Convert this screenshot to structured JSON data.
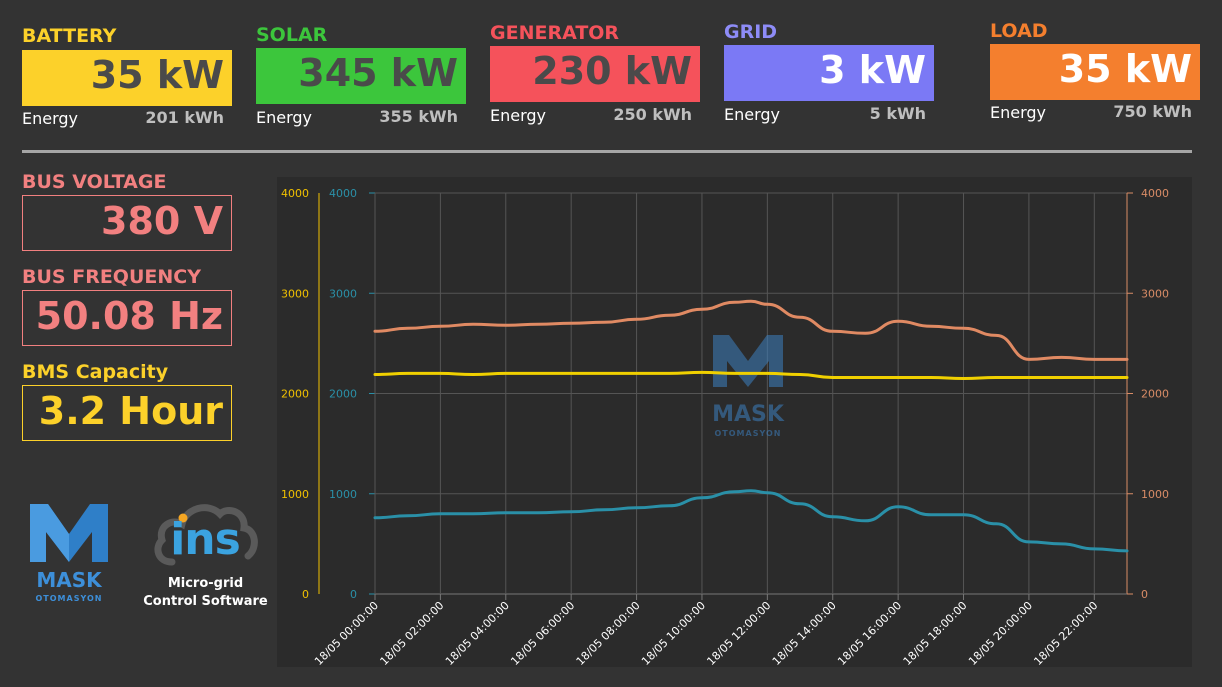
{
  "tiles": [
    {
      "id": "battery",
      "label": "BATTERY",
      "value": "35 kW",
      "energy_label": "Energy",
      "energy_value": "201 kWh",
      "color": "#fcd12a",
      "label_color": "#fcd12a",
      "value_color": "#4a4a4a"
    },
    {
      "id": "solar",
      "label": "SOLAR",
      "value": "345 kW",
      "energy_label": "Energy",
      "energy_value": "355 kWh",
      "color": "#3cc63c",
      "label_color": "#3cc63c",
      "value_color": "#4a4a4a"
    },
    {
      "id": "generator",
      "label": "GENERATOR",
      "value": "230 kW",
      "energy_label": "Energy",
      "energy_value": "250 kWh",
      "color": "#f5525b",
      "label_color": "#f5525b",
      "value_color": "#4a4a4a"
    },
    {
      "id": "grid",
      "label": "GRID",
      "value": "3 kW",
      "energy_label": "Energy",
      "energy_value": "5 kWh",
      "color": "#7b79f5",
      "label_color": "#8e8cf7",
      "value_color": "#ffffff"
    },
    {
      "id": "load",
      "label": "LOAD",
      "value": "35 kW",
      "energy_label": "Energy",
      "energy_value": "750 kWh",
      "color": "#f47f2e",
      "label_color": "#f47f2e",
      "value_color": "#ffffff"
    }
  ],
  "stats": [
    {
      "id": "bus-voltage",
      "label": "BUS VOLTAGE",
      "value": "380 V",
      "color": "#f28080"
    },
    {
      "id": "bus-frequency",
      "label": "BUS FREQUENCY",
      "value": "50.08 Hz",
      "color": "#f28080"
    },
    {
      "id": "bms-capacity",
      "label": "BMS Capacity",
      "value": "3.2 Hour",
      "color": "#fcd12a"
    }
  ],
  "logos": {
    "mask_name": "MASK",
    "mask_sub": "OTOMASYON",
    "ins_name": "ins",
    "ins_caption_1": "Micro-grid",
    "ins_caption_2": "Control Software"
  },
  "chart_data": {
    "type": "line",
    "x": [
      "18/05 00:00:00",
      "18/05 01:00:00",
      "18/05 02:00:00",
      "18/05 03:00:00",
      "18/05 04:00:00",
      "18/05 05:00:00",
      "18/05 06:00:00",
      "18/05 07:00:00",
      "18/05 08:00:00",
      "18/05 09:00:00",
      "18/05 10:00:00",
      "18/05 11:00:00",
      "18/05 11:30:00",
      "18/05 12:00:00",
      "18/05 13:00:00",
      "18/05 14:00:00",
      "18/05 15:00:00",
      "18/05 16:00:00",
      "18/05 17:00:00",
      "18/05 18:00:00",
      "18/05 19:00:00",
      "18/05 20:00:00",
      "18/05 21:00:00",
      "18/05 22:00:00",
      "18/05 23:00:00"
    ],
    "x_ticks": [
      "18/05 00:00:00",
      "18/05 02:00:00",
      "18/05 04:00:00",
      "18/05 06:00:00",
      "18/05 08:00:00",
      "18/05 10:00:00",
      "18/05 12:00:00",
      "18/05 14:00:00",
      "18/05 16:00:00",
      "18/05 18:00:00",
      "18/05 20:00:00",
      "18/05 22:00:00"
    ],
    "series": [
      {
        "values": [
          2620,
          2650,
          2670,
          2690,
          2680,
          2690,
          2700,
          2710,
          2740,
          2780,
          2840,
          2910,
          2920,
          2890,
          2760,
          2620,
          2600,
          2720,
          2670,
          2650,
          2580,
          2340,
          2360,
          2340,
          2340
        ],
        "color": "#e08a63",
        "axis": "right"
      },
      {
        "values": [
          2190,
          2200,
          2200,
          2190,
          2200,
          2200,
          2200,
          2200,
          2200,
          2200,
          2210,
          2200,
          2200,
          2200,
          2190,
          2160,
          2160,
          2160,
          2160,
          2150,
          2160,
          2160,
          2160,
          2160,
          2160
        ],
        "color": "#f0d000",
        "axis": "left"
      },
      {
        "values": [
          760,
          780,
          800,
          800,
          810,
          810,
          820,
          840,
          860,
          880,
          960,
          1020,
          1030,
          1010,
          900,
          770,
          730,
          870,
          790,
          790,
          700,
          520,
          500,
          450,
          430
        ],
        "color": "#2a90a8",
        "axis": "left2"
      }
    ],
    "y_left": {
      "ticks": [
        "0",
        "1000",
        "2000",
        "3000",
        "4000"
      ],
      "color": "#f0c000",
      "range": [
        0,
        4000
      ]
    },
    "y_left2": {
      "ticks": [
        "0",
        "1000",
        "2000",
        "3000",
        "4000"
      ],
      "color": "#2a90a8",
      "range": [
        0,
        4000
      ]
    },
    "y_right": {
      "ticks": [
        "0",
        "1000",
        "2000",
        "3000",
        "4000"
      ],
      "color": "#d98c66",
      "range": [
        0,
        4000
      ]
    },
    "grid": true,
    "watermark": {
      "name": "MASK",
      "sub": "OTOMASYON"
    }
  }
}
